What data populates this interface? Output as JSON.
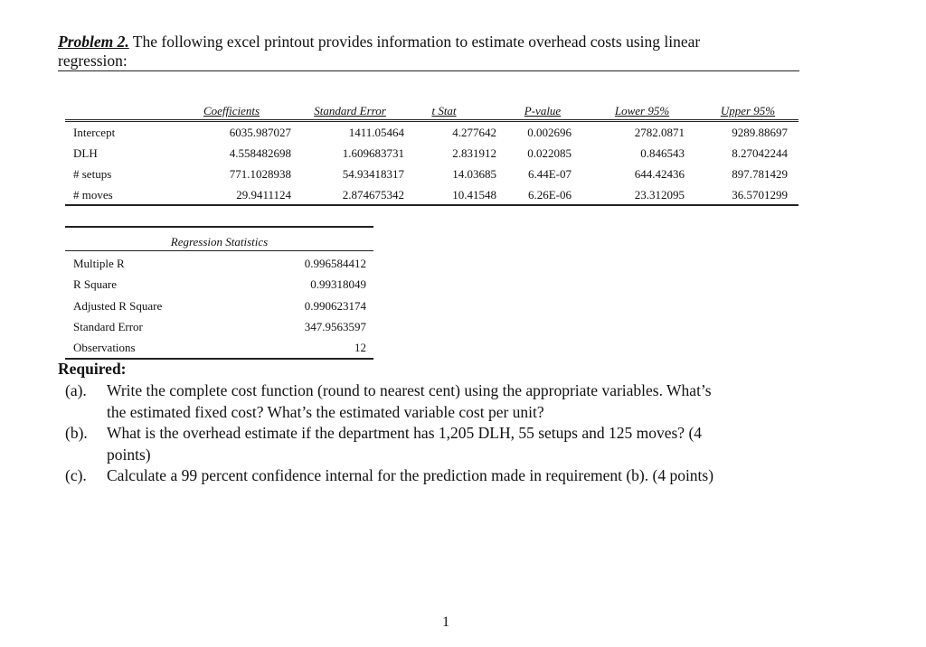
{
  "title": {
    "label": "Problem 2.",
    "text": " The following excel printout provides information to estimate overhead costs using linear",
    "text2": "regression:"
  },
  "coef_table": {
    "headers": [
      "Coefficients",
      "Standard Error",
      "t Stat",
      "P-value",
      "Lower 95%",
      "Upper 95%"
    ],
    "rows": [
      {
        "label": "Intercept",
        "values": [
          "6035.987027",
          "1411.05464",
          "4.277642",
          "0.002696",
          "2782.0871",
          "9289.88697"
        ]
      },
      {
        "label": "DLH",
        "values": [
          "4.558482698",
          "1.609683731",
          "2.831912",
          "0.022085",
          "0.846543",
          "8.27042244"
        ]
      },
      {
        "label": "# setups",
        "values": [
          "771.1028938",
          "54.93418317",
          "14.03685",
          "6.44E-07",
          "644.42436",
          "897.781429"
        ]
      },
      {
        "label": "# moves",
        "values": [
          "29.9411124",
          "2.874675342",
          "10.41548",
          "6.26E-06",
          "23.312095",
          "36.5701299"
        ]
      }
    ]
  },
  "reg_stats": {
    "header": "Regression Statistics",
    "rows": [
      {
        "label": "Multiple R",
        "value": "0.996584412"
      },
      {
        "label": "R Square",
        "value": "0.99318049"
      },
      {
        "label": "Adjusted R Square",
        "value": "0.990623174"
      },
      {
        "label": "Standard Error",
        "value": "347.9563597"
      },
      {
        "label": "Observations",
        "value": "12"
      }
    ]
  },
  "required": {
    "heading": "Required:",
    "items": [
      {
        "marker": "(a).",
        "lines": [
          "Write the complete cost function (round to nearest cent) using the appropriate variables. What’s",
          "the estimated fixed cost? What’s the estimated variable cost per unit?"
        ]
      },
      {
        "marker": "(b).",
        "lines": [
          "What is the overhead estimate if the department has 1,205 DLH, 55 setups and 125 moves? (4",
          "points)"
        ]
      },
      {
        "marker": "(c).",
        "lines": [
          "Calculate a 99 percent confidence internal for the prediction made in requirement (b). (4 points)"
        ]
      }
    ]
  },
  "page_number": "1"
}
